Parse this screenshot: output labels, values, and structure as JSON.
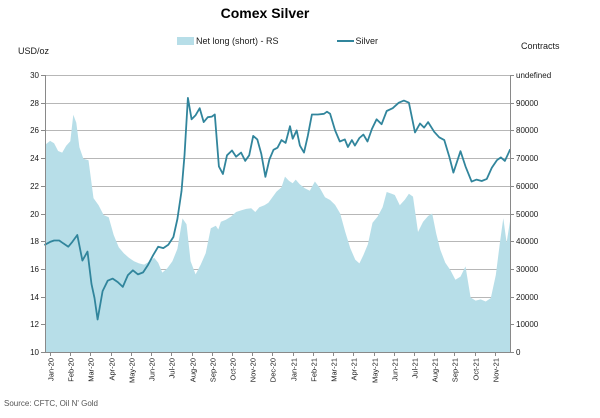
{
  "title": "Comex Silver",
  "source": "Source: CFTC, Oil N' Gold",
  "left_unit_label": "USD/oz",
  "right_unit_label": "Contracts",
  "legend": [
    {
      "label": "Net long (short) - RS",
      "type": "area",
      "color": "#B7DEE8"
    },
    {
      "label": "Silver",
      "type": "line",
      "color": "#31859C"
    }
  ],
  "colors": {
    "area_fill": "#B7DEE8",
    "line_stroke": "#31859C",
    "gridline": "#b7b7b7",
    "axis": "#898989",
    "tick_text": "#1a1a1a"
  },
  "chart_data": {
    "type": "combo",
    "title": "Comex Silver",
    "x_unit": "months (0 = Jan-2020 tick)",
    "x_range": [
      -0.25,
      22.75
    ],
    "x_tick_labels": [
      "Jan-20",
      "Feb-20",
      "Mar-20",
      "Apr-20",
      "May-20",
      "Jun-20",
      "Jul-20",
      "Aug-20",
      "Sep-20",
      "Oct-20",
      "Nov-20",
      "Dec-20",
      "Jan-21",
      "Feb-21",
      "Mar-21",
      "Apr-21",
      "May-21",
      "Jun-21",
      "Jul-21",
      "Aug-21",
      "Sep-21",
      "Oct-21",
      "Nov-21"
    ],
    "left_axis": {
      "label": "USD/oz",
      "range": [
        10,
        30
      ],
      "step": 2,
      "tick_labels": [
        "10",
        "12",
        "14",
        "16",
        "18",
        "20",
        "22",
        "24",
        "26",
        "28",
        "30"
      ]
    },
    "right_axis": {
      "label": "Contracts",
      "range": [
        0,
        90000
      ],
      "step": 10000,
      "tick_labels": [
        "0",
        "10000",
        "20000",
        "30000",
        "40000",
        "50000",
        "60000",
        "70000",
        "80000",
        "90000"
      ]
    },
    "grid": true,
    "legend_position": "top",
    "series": [
      {
        "name": "Net long (short) - RS",
        "type": "area",
        "axis": "right",
        "color": "#B7DEE8",
        "points": [
          [
            -0.25,
            67300
          ],
          [
            0,
            68600
          ],
          [
            0.2,
            67800
          ],
          [
            0.4,
            65300
          ],
          [
            0.6,
            64800
          ],
          [
            0.8,
            67000
          ],
          [
            1.0,
            68500
          ],
          [
            1.15,
            77100
          ],
          [
            1.3,
            74500
          ],
          [
            1.45,
            66500
          ],
          [
            1.65,
            62800
          ],
          [
            1.9,
            62300
          ],
          [
            2.15,
            50000
          ],
          [
            2.4,
            47700
          ],
          [
            2.65,
            44500
          ],
          [
            2.9,
            43800
          ],
          [
            3.15,
            38000
          ],
          [
            3.4,
            34000
          ],
          [
            3.65,
            32100
          ],
          [
            3.9,
            30600
          ],
          [
            4.15,
            29500
          ],
          [
            4.4,
            28800
          ],
          [
            4.65,
            28400
          ],
          [
            4.9,
            29300
          ],
          [
            5.15,
            30600
          ],
          [
            5.35,
            29000
          ],
          [
            5.55,
            25800
          ],
          [
            5.8,
            27200
          ],
          [
            6.05,
            29500
          ],
          [
            6.3,
            33500
          ],
          [
            6.55,
            43400
          ],
          [
            6.75,
            41500
          ],
          [
            6.95,
            29500
          ],
          [
            7.2,
            25200
          ],
          [
            7.45,
            28400
          ],
          [
            7.7,
            32100
          ],
          [
            7.95,
            40200
          ],
          [
            8.2,
            41000
          ],
          [
            8.32,
            39800
          ],
          [
            8.45,
            42300
          ],
          [
            8.7,
            43000
          ],
          [
            8.95,
            44000
          ],
          [
            9.2,
            45500
          ],
          [
            9.45,
            46000
          ],
          [
            9.7,
            46500
          ],
          [
            9.95,
            46700
          ],
          [
            10.15,
            45500
          ],
          [
            10.35,
            47000
          ],
          [
            10.6,
            47700
          ],
          [
            10.8,
            48500
          ],
          [
            11.0,
            50300
          ],
          [
            11.2,
            52100
          ],
          [
            11.45,
            53500
          ],
          [
            11.62,
            57000
          ],
          [
            11.82,
            55600
          ],
          [
            12.0,
            54800
          ],
          [
            12.15,
            56000
          ],
          [
            12.35,
            54500
          ],
          [
            12.6,
            53200
          ],
          [
            12.85,
            52400
          ],
          [
            13.1,
            55400
          ],
          [
            13.35,
            53200
          ],
          [
            13.6,
            50300
          ],
          [
            13.85,
            49400
          ],
          [
            14.1,
            47800
          ],
          [
            14.35,
            45000
          ],
          [
            14.6,
            39100
          ],
          [
            14.85,
            33700
          ],
          [
            15.1,
            30000
          ],
          [
            15.3,
            28800
          ],
          [
            15.5,
            31500
          ],
          [
            15.72,
            35000
          ],
          [
            15.95,
            42000
          ],
          [
            16.2,
            44000
          ],
          [
            16.45,
            47000
          ],
          [
            16.65,
            52000
          ],
          [
            16.9,
            51400
          ],
          [
            17.05,
            51000
          ],
          [
            17.3,
            47700
          ],
          [
            17.55,
            49500
          ],
          [
            17.75,
            51400
          ],
          [
            17.95,
            50500
          ],
          [
            18.2,
            39000
          ],
          [
            18.45,
            42300
          ],
          [
            18.7,
            44200
          ],
          [
            18.9,
            45000
          ],
          [
            19.1,
            38500
          ],
          [
            19.3,
            33200
          ],
          [
            19.55,
            29000
          ],
          [
            19.8,
            26600
          ],
          [
            20.05,
            23500
          ],
          [
            20.3,
            24500
          ],
          [
            20.55,
            27800
          ],
          [
            20.8,
            17700
          ],
          [
            21.05,
            16700
          ],
          [
            21.3,
            17100
          ],
          [
            21.55,
            16400
          ],
          [
            21.8,
            17500
          ],
          [
            22.05,
            25000
          ],
          [
            22.25,
            35500
          ],
          [
            22.42,
            43500
          ],
          [
            22.58,
            35500
          ],
          [
            22.75,
            42500
          ]
        ]
      },
      {
        "name": "Silver",
        "type": "line",
        "axis": "left",
        "color": "#31859C",
        "points": [
          [
            -0.25,
            17.75
          ],
          [
            0,
            17.95
          ],
          [
            0.2,
            18.05
          ],
          [
            0.45,
            18.05
          ],
          [
            0.65,
            17.85
          ],
          [
            0.9,
            17.6
          ],
          [
            1.1,
            17.95
          ],
          [
            1.35,
            18.45
          ],
          [
            1.6,
            16.6
          ],
          [
            1.85,
            17.25
          ],
          [
            2.05,
            14.9
          ],
          [
            2.2,
            13.9
          ],
          [
            2.35,
            12.35
          ],
          [
            2.6,
            14.4
          ],
          [
            2.85,
            15.15
          ],
          [
            3.1,
            15.3
          ],
          [
            3.35,
            15.05
          ],
          [
            3.6,
            14.7
          ],
          [
            3.85,
            15.55
          ],
          [
            4.1,
            15.9
          ],
          [
            4.35,
            15.6
          ],
          [
            4.6,
            15.75
          ],
          [
            4.85,
            16.3
          ],
          [
            5.1,
            17.0
          ],
          [
            5.35,
            17.6
          ],
          [
            5.6,
            17.5
          ],
          [
            5.85,
            17.75
          ],
          [
            6.1,
            18.3
          ],
          [
            6.3,
            19.6
          ],
          [
            6.5,
            21.6
          ],
          [
            6.65,
            24.2
          ],
          [
            6.82,
            28.35
          ],
          [
            7.0,
            26.8
          ],
          [
            7.2,
            27.1
          ],
          [
            7.4,
            27.6
          ],
          [
            7.6,
            26.6
          ],
          [
            7.8,
            26.95
          ],
          [
            8.0,
            27.0
          ],
          [
            8.15,
            27.15
          ],
          [
            8.35,
            23.4
          ],
          [
            8.55,
            22.85
          ],
          [
            8.75,
            24.2
          ],
          [
            9.0,
            24.55
          ],
          [
            9.2,
            24.1
          ],
          [
            9.45,
            24.4
          ],
          [
            9.65,
            23.8
          ],
          [
            9.85,
            24.2
          ],
          [
            10.05,
            25.6
          ],
          [
            10.25,
            25.35
          ],
          [
            10.45,
            24.3
          ],
          [
            10.65,
            22.65
          ],
          [
            10.85,
            23.9
          ],
          [
            11.05,
            24.6
          ],
          [
            11.25,
            24.75
          ],
          [
            11.45,
            25.3
          ],
          [
            11.65,
            25.1
          ],
          [
            11.87,
            26.3
          ],
          [
            12.0,
            25.4
          ],
          [
            12.2,
            26.0
          ],
          [
            12.36,
            24.9
          ],
          [
            12.56,
            24.4
          ],
          [
            12.75,
            25.6
          ],
          [
            12.95,
            27.15
          ],
          [
            13.25,
            27.15
          ],
          [
            13.55,
            27.2
          ],
          [
            13.7,
            27.35
          ],
          [
            13.85,
            27.2
          ],
          [
            14.1,
            26.0
          ],
          [
            14.33,
            25.2
          ],
          [
            14.58,
            25.35
          ],
          [
            14.73,
            24.8
          ],
          [
            14.93,
            25.3
          ],
          [
            15.08,
            24.9
          ],
          [
            15.3,
            25.45
          ],
          [
            15.5,
            25.7
          ],
          [
            15.7,
            25.2
          ],
          [
            15.92,
            26.1
          ],
          [
            16.15,
            26.8
          ],
          [
            16.4,
            26.45
          ],
          [
            16.65,
            27.4
          ],
          [
            16.95,
            27.6
          ],
          [
            17.25,
            28.0
          ],
          [
            17.5,
            28.15
          ],
          [
            17.75,
            28.0
          ],
          [
            18.05,
            25.85
          ],
          [
            18.3,
            26.5
          ],
          [
            18.5,
            26.2
          ],
          [
            18.7,
            26.6
          ],
          [
            19.0,
            25.9
          ],
          [
            19.25,
            25.5
          ],
          [
            19.5,
            25.3
          ],
          [
            19.75,
            24.1
          ],
          [
            19.95,
            22.95
          ],
          [
            20.3,
            24.5
          ],
          [
            20.55,
            23.4
          ],
          [
            20.85,
            22.3
          ],
          [
            21.1,
            22.45
          ],
          [
            21.35,
            22.35
          ],
          [
            21.6,
            22.5
          ],
          [
            21.85,
            23.3
          ],
          [
            22.1,
            23.85
          ],
          [
            22.3,
            24.05
          ],
          [
            22.5,
            23.8
          ],
          [
            22.75,
            24.6
          ]
        ]
      }
    ]
  }
}
